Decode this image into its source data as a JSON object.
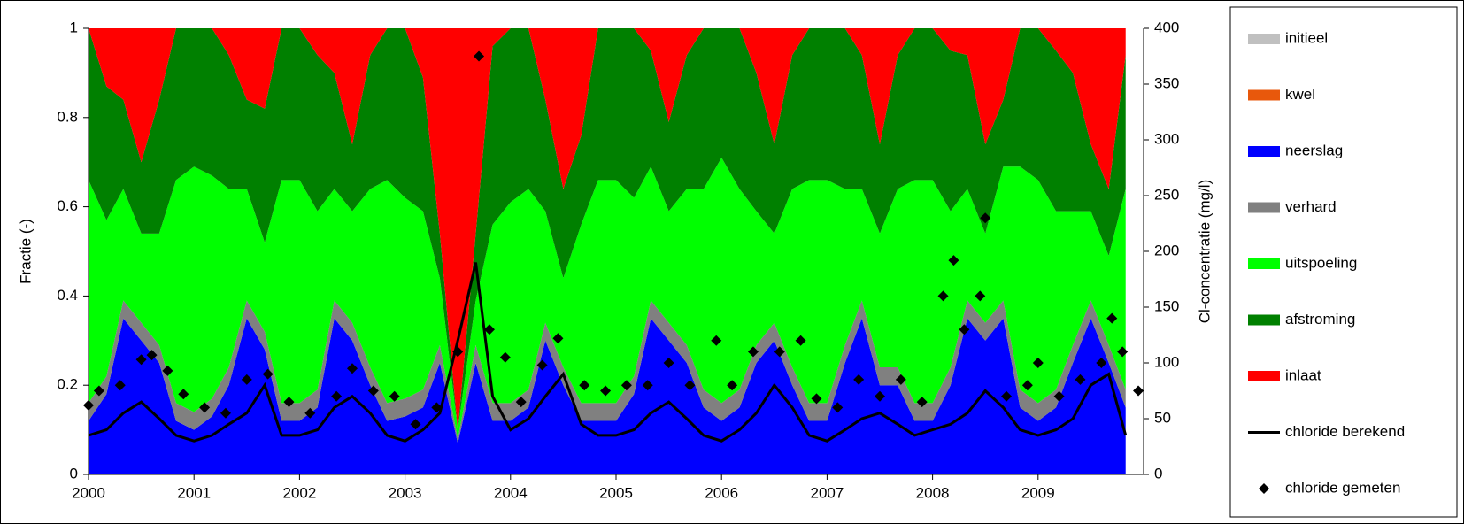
{
  "chart_data": {
    "type": "area",
    "y_label": "Fractie (-)",
    "y2_label": "Cl-concentratie (mg/l)",
    "xlim": [
      2000,
      2010
    ],
    "xticks": [
      2000,
      2001,
      2002,
      2003,
      2004,
      2005,
      2006,
      2007,
      2008,
      2009
    ],
    "ylim": [
      0,
      1
    ],
    "yticks": [
      0,
      0.2,
      0.4,
      0.6,
      0.8,
      1
    ],
    "y2lim": [
      0,
      400
    ],
    "y2ticks": [
      0,
      50,
      100,
      150,
      200,
      250,
      300,
      350,
      400
    ],
    "x": [
      2000.0,
      2000.17,
      2000.33,
      2000.5,
      2000.67,
      2000.83,
      2001.0,
      2001.17,
      2001.33,
      2001.5,
      2001.67,
      2001.83,
      2002.0,
      2002.17,
      2002.33,
      2002.5,
      2002.67,
      2002.83,
      2003.0,
      2003.17,
      2003.33,
      2003.5,
      2003.67,
      2003.83,
      2004.0,
      2004.17,
      2004.33,
      2004.5,
      2004.67,
      2004.83,
      2005.0,
      2005.17,
      2005.33,
      2005.5,
      2005.67,
      2005.83,
      2006.0,
      2006.17,
      2006.33,
      2006.5,
      2006.67,
      2006.83,
      2007.0,
      2007.17,
      2007.33,
      2007.5,
      2007.67,
      2007.83,
      2008.0,
      2008.17,
      2008.33,
      2008.5,
      2008.67,
      2008.83,
      2009.0,
      2009.17,
      2009.33,
      2009.5,
      2009.67,
      2009.83
    ],
    "series": [
      {
        "name": "initieel",
        "type": "area",
        "color": "#c0c0c0",
        "values": [
          0,
          0,
          0,
          0,
          0,
          0,
          0,
          0,
          0,
          0,
          0,
          0,
          0,
          0,
          0,
          0,
          0,
          0,
          0,
          0,
          0,
          0,
          0,
          0,
          0,
          0,
          0,
          0,
          0,
          0,
          0,
          0,
          0,
          0,
          0,
          0,
          0,
          0,
          0,
          0,
          0,
          0,
          0,
          0,
          0,
          0,
          0,
          0,
          0,
          0,
          0,
          0,
          0,
          0,
          0,
          0,
          0,
          0,
          0,
          0
        ]
      },
      {
        "name": "kwel",
        "type": "area",
        "color": "#e8580c",
        "values": [
          0,
          0,
          0,
          0,
          0,
          0,
          0,
          0,
          0,
          0,
          0,
          0,
          0,
          0,
          0,
          0,
          0,
          0,
          0,
          0,
          0,
          0,
          0,
          0,
          0,
          0,
          0,
          0,
          0,
          0,
          0,
          0,
          0,
          0,
          0,
          0,
          0,
          0,
          0,
          0,
          0,
          0,
          0,
          0,
          0,
          0,
          0,
          0,
          0,
          0,
          0,
          0,
          0,
          0,
          0,
          0,
          0,
          0,
          0,
          0
        ]
      },
      {
        "name": "neerslag",
        "type": "area",
        "color": "#0000ff",
        "values": [
          0.12,
          0.18,
          0.35,
          0.3,
          0.25,
          0.12,
          0.1,
          0.13,
          0.2,
          0.35,
          0.28,
          0.12,
          0.12,
          0.15,
          0.35,
          0.3,
          0.2,
          0.12,
          0.13,
          0.15,
          0.25,
          0.07,
          0.25,
          0.12,
          0.12,
          0.15,
          0.3,
          0.2,
          0.12,
          0.12,
          0.12,
          0.18,
          0.35,
          0.3,
          0.25,
          0.15,
          0.12,
          0.15,
          0.25,
          0.3,
          0.2,
          0.12,
          0.12,
          0.25,
          0.35,
          0.2,
          0.2,
          0.12,
          0.12,
          0.2,
          0.35,
          0.3,
          0.35,
          0.15,
          0.12,
          0.15,
          0.25,
          0.35,
          0.25,
          0.15
        ]
      },
      {
        "name": "verhard",
        "type": "area",
        "color": "#808080",
        "values": [
          0.04,
          0.04,
          0.04,
          0.04,
          0.04,
          0.04,
          0.04,
          0.04,
          0.04,
          0.04,
          0.04,
          0.04,
          0.04,
          0.04,
          0.04,
          0.04,
          0.04,
          0.04,
          0.04,
          0.04,
          0.04,
          0.01,
          0.04,
          0.04,
          0.04,
          0.04,
          0.04,
          0.04,
          0.04,
          0.04,
          0.04,
          0.04,
          0.04,
          0.04,
          0.04,
          0.04,
          0.04,
          0.04,
          0.04,
          0.04,
          0.04,
          0.04,
          0.04,
          0.04,
          0.04,
          0.04,
          0.04,
          0.04,
          0.04,
          0.04,
          0.04,
          0.04,
          0.04,
          0.04,
          0.04,
          0.04,
          0.04,
          0.04,
          0.04,
          0.04
        ]
      },
      {
        "name": "uitspoeling",
        "type": "area",
        "color": "#00ff00",
        "values": [
          0.5,
          0.35,
          0.25,
          0.2,
          0.25,
          0.5,
          0.55,
          0.5,
          0.4,
          0.25,
          0.2,
          0.5,
          0.5,
          0.4,
          0.25,
          0.25,
          0.4,
          0.5,
          0.45,
          0.4,
          0.15,
          0.02,
          0.1,
          0.4,
          0.45,
          0.45,
          0.25,
          0.2,
          0.4,
          0.5,
          0.5,
          0.4,
          0.3,
          0.25,
          0.35,
          0.45,
          0.55,
          0.45,
          0.3,
          0.2,
          0.4,
          0.5,
          0.5,
          0.35,
          0.25,
          0.3,
          0.4,
          0.5,
          0.5,
          0.35,
          0.25,
          0.2,
          0.3,
          0.5,
          0.5,
          0.4,
          0.3,
          0.2,
          0.2,
          0.45
        ]
      },
      {
        "name": "afstroming",
        "type": "area",
        "color": "#008000",
        "values": [
          0.34,
          0.3,
          0.2,
          0.16,
          0.3,
          0.34,
          0.31,
          0.33,
          0.3,
          0.2,
          0.3,
          0.34,
          0.34,
          0.35,
          0.26,
          0.15,
          0.3,
          0.34,
          0.38,
          0.3,
          0.1,
          0.0,
          0.15,
          0.4,
          0.39,
          0.36,
          0.25,
          0.2,
          0.2,
          0.34,
          0.34,
          0.38,
          0.26,
          0.2,
          0.3,
          0.36,
          0.29,
          0.36,
          0.31,
          0.2,
          0.3,
          0.34,
          0.34,
          0.36,
          0.3,
          0.2,
          0.3,
          0.34,
          0.34,
          0.36,
          0.3,
          0.2,
          0.15,
          0.31,
          0.34,
          0.36,
          0.31,
          0.15,
          0.15,
          0.3
        ]
      },
      {
        "name": "inlaat",
        "type": "area",
        "color": "#ff0000",
        "values": [
          0,
          0.13,
          0.16,
          0.3,
          0.16,
          0,
          0,
          0,
          0.06,
          0.16,
          0.18,
          0,
          0,
          0.06,
          0.1,
          0.26,
          0.06,
          0,
          0,
          0.11,
          0.46,
          0.9,
          0.46,
          0.04,
          0,
          0,
          0.16,
          0.36,
          0.24,
          0,
          0,
          0,
          0.05,
          0.21,
          0.06,
          0,
          0,
          0,
          0.1,
          0.26,
          0.06,
          0,
          0,
          0,
          0.06,
          0.26,
          0.06,
          0,
          0,
          0.05,
          0.06,
          0.26,
          0.16,
          0,
          0,
          0.05,
          0.1,
          0.26,
          0.36,
          0.06
        ]
      },
      {
        "name": "chloride berekend",
        "type": "line",
        "axis": "y2",
        "color": "#000000",
        "values": [
          35,
          40,
          55,
          65,
          50,
          35,
          30,
          35,
          45,
          55,
          80,
          35,
          35,
          40,
          60,
          70,
          55,
          35,
          30,
          40,
          55,
          120,
          190,
          70,
          40,
          50,
          70,
          90,
          45,
          35,
          35,
          40,
          55,
          65,
          50,
          35,
          30,
          40,
          55,
          80,
          60,
          35,
          30,
          40,
          50,
          55,
          45,
          35,
          40,
          45,
          55,
          75,
          60,
          40,
          35,
          40,
          50,
          80,
          90,
          35
        ]
      },
      {
        "name": "chloride gemeten",
        "type": "scatter",
        "axis": "y2",
        "color": "#000000",
        "x": [
          2000.0,
          2000.1,
          2000.3,
          2000.5,
          2000.6,
          2000.75,
          2000.9,
          2001.1,
          2001.3,
          2001.5,
          2001.7,
          2001.9,
          2002.1,
          2002.35,
          2002.5,
          2002.7,
          2002.9,
          2003.1,
          2003.3,
          2003.5,
          2003.7,
          2003.8,
          2003.95,
          2004.1,
          2004.3,
          2004.45,
          2004.7,
          2004.9,
          2005.1,
          2005.3,
          2005.5,
          2005.7,
          2005.95,
          2006.1,
          2006.3,
          2006.55,
          2006.75,
          2006.9,
          2007.1,
          2007.3,
          2007.5,
          2007.7,
          2007.9,
          2008.1,
          2008.2,
          2008.3,
          2008.45,
          2008.5,
          2008.7,
          2008.9,
          2009.0,
          2009.2,
          2009.4,
          2009.6,
          2009.7,
          2009.8,
          2009.95
        ],
        "values": [
          62,
          75,
          80,
          103,
          107,
          93,
          72,
          60,
          55,
          85,
          90,
          65,
          55,
          70,
          95,
          75,
          70,
          45,
          60,
          110,
          375,
          130,
          105,
          65,
          98,
          122,
          80,
          75,
          80,
          80,
          100,
          80,
          120,
          80,
          110,
          110,
          120,
          68,
          60,
          85,
          70,
          85,
          65,
          160,
          192,
          130,
          160,
          230,
          70,
          80,
          100,
          70,
          85,
          100,
          140,
          110,
          75
        ]
      }
    ]
  }
}
